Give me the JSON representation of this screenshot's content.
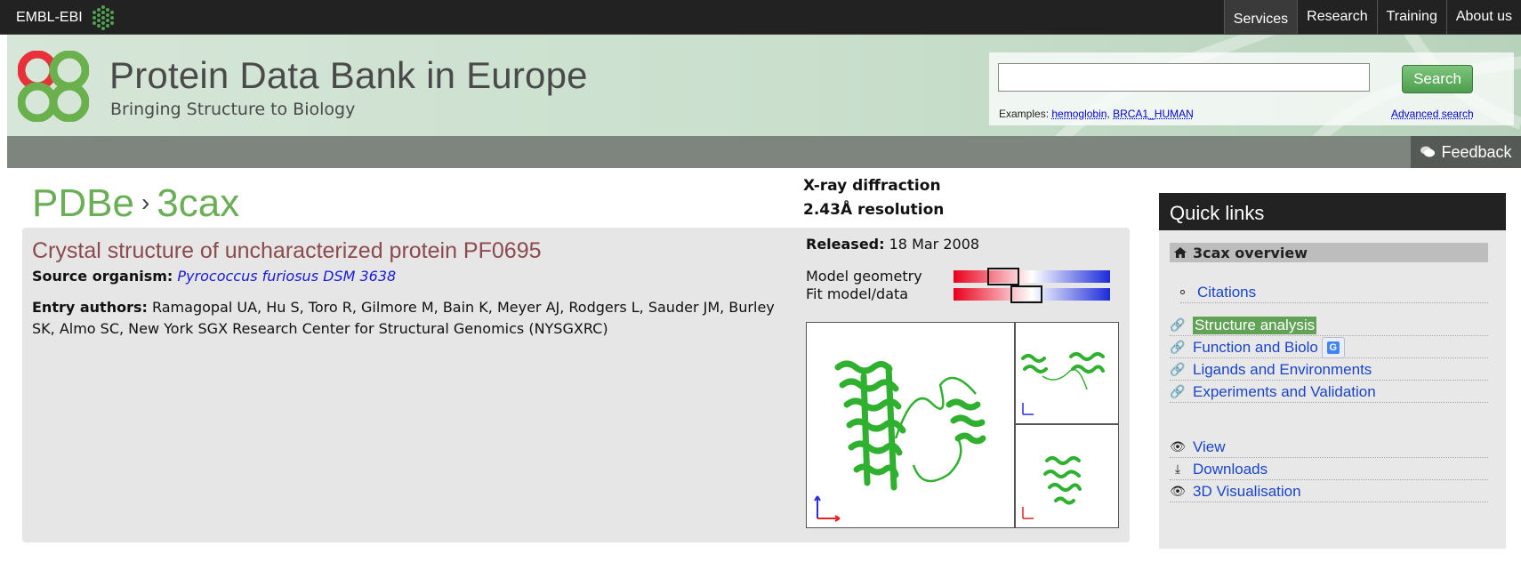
{
  "topbar": {
    "ebi_label": "EMBL-EBI",
    "nav": [
      "Services",
      "Research",
      "Training",
      "About us"
    ]
  },
  "header": {
    "title": "Protein Data Bank in Europe",
    "subtitle": "Bringing Structure to Biology",
    "search": {
      "value": "",
      "button": "Search",
      "examples_label": "Examples:",
      "examples": [
        "hemoglobin",
        "BRCA1_HUMAN"
      ],
      "advanced": "Advanced search"
    },
    "feedback": "Feedback"
  },
  "breadcrumb": {
    "root": "PDBe",
    "separator": "›",
    "entry": "3cax"
  },
  "entry": {
    "title": "Crystal structure of uncharacterized protein PF0695",
    "source_label": "Source organism:",
    "source_organism": "Pyrococcus furiosus DSM 3638",
    "authors_label": "Entry authors:",
    "authors": "Ramagopal UA, Hu S, Toro R, Gilmore M, Bain K, Meyer AJ, Rodgers L, Sauder JM, Burley SK, Almo SC, New York SGX Research Center for Structural Genomics (NYSGXRC)",
    "method": "X-ray diffraction",
    "resolution": "2.43Å resolution",
    "released_label": "Released:",
    "released": "18 Mar 2008",
    "metrics": [
      {
        "label": "Model geometry",
        "percentile": 0.27
      },
      {
        "label": "Fit model/data",
        "percentile": 0.46
      }
    ]
  },
  "quick_links": {
    "header": "Quick links",
    "overview": "3cax overview",
    "citations": "Citations",
    "links": [
      "Structure analysis",
      "Function and Biology",
      "Ligands and Environments",
      "Experiments and Validation"
    ],
    "visible_truncated_link": "Function and Biolo",
    "bottom_links": [
      "View",
      "Downloads",
      "3D Visualisation"
    ],
    "colors": {
      "highlight": "#61a256",
      "link": "#1a44c8",
      "title_green": "#6aae56",
      "entry_title": "#8b4a4f"
    }
  }
}
